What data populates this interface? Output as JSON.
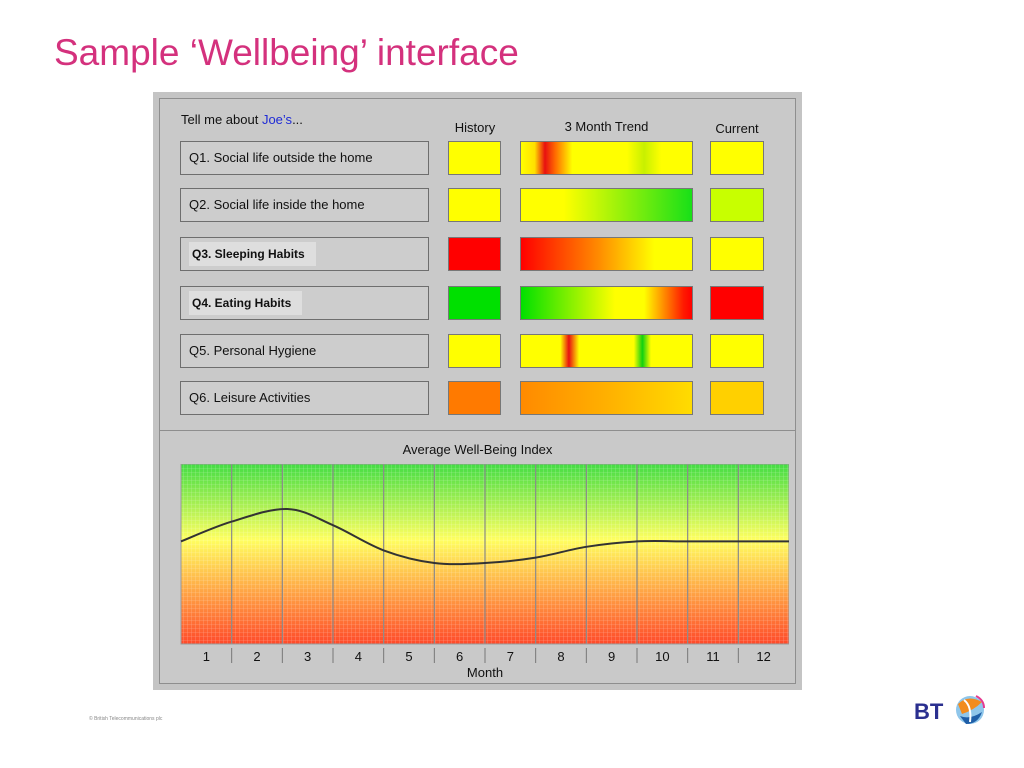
{
  "slide": {
    "title": "Sample ‘Wellbeing’ interface",
    "copyright": "© British Telecommunications plc"
  },
  "prompt": {
    "prefix": "Tell me about ",
    "name": "Joe’s",
    "suffix": "..."
  },
  "columns": {
    "history": "History",
    "trend": "3 Month Trend",
    "current": "Current"
  },
  "questions": [
    {
      "label": "Q1. Social life outside the home",
      "bold": false,
      "history": "#ffff00",
      "current": "#ffff00",
      "trend": "linear-gradient(to right,#ffff00 0%,#ffe000 8%,#e81010 14%,#ff6a00 20%,#ffff00 30%,#ffff00 62%,#c8f000 72%,#ffff00 82%,#ffff00 100%)"
    },
    {
      "label": "Q2. Social life inside the home",
      "bold": false,
      "history": "#ffff00",
      "current": "#c8ff00",
      "trend": "linear-gradient(to right,#ffff00 0%,#ffff00 25%,#18e018 100%)"
    },
    {
      "label": "Q3. Sleeping Habits",
      "bold": true,
      "history": "#ff0000",
      "current": "#ffff00",
      "trend": "linear-gradient(to right,#ff0000 0%,#ff8a00 45%,#ffff00 78%,#ffff00 100%)"
    },
    {
      "label": "Q4. Eating Habits",
      "bold": true,
      "history": "#00e000",
      "current": "#ff0000",
      "trend": "linear-gradient(to right,#00e000 0%,#ffff00 55%,#ffff00 72%,#ff1a00 95%,#ff0000 100%)"
    },
    {
      "label": "Q5. Personal Hygiene",
      "bold": false,
      "history": "#ffff00",
      "current": "#ffff00",
      "trend": "linear-gradient(to right,#ffff00 0%,#ffff00 23%,#e81010 28%,#ffff00 34%,#ffff00 66%,#10d010 71%,#ffff00 76%,#ffff00 100%)"
    },
    {
      "label": "Q6. Leisure Activities",
      "bold": false,
      "history": "#ff7a00",
      "current": "#ffd000",
      "trend": "linear-gradient(to right,#ff8a00 0%,#ffb000 50%,#ffdc00 100%)"
    }
  ],
  "chart_data": {
    "type": "line",
    "title": "Average Well-Being Index",
    "xlabel": "Month",
    "ylabel": "",
    "categories": [
      "1",
      "2",
      "3",
      "4",
      "5",
      "6",
      "7",
      "8",
      "9",
      "10",
      "11",
      "12"
    ],
    "x": [
      0.0,
      1.0,
      2.1,
      3.0,
      4.0,
      5.0,
      6.0,
      7.0,
      8.0,
      9.0,
      10.0,
      11.0,
      12.0
    ],
    "values": [
      0.57,
      0.68,
      0.75,
      0.66,
      0.52,
      0.45,
      0.45,
      0.48,
      0.54,
      0.57,
      0.57,
      0.57,
      0.57
    ],
    "ylim": [
      0,
      1
    ],
    "grid": true,
    "colors": {
      "top": "#44dd44",
      "mid": "#ffff60",
      "bottom": "#ff4a2a",
      "line": "#333333"
    }
  },
  "logo": {
    "text": "BT"
  }
}
